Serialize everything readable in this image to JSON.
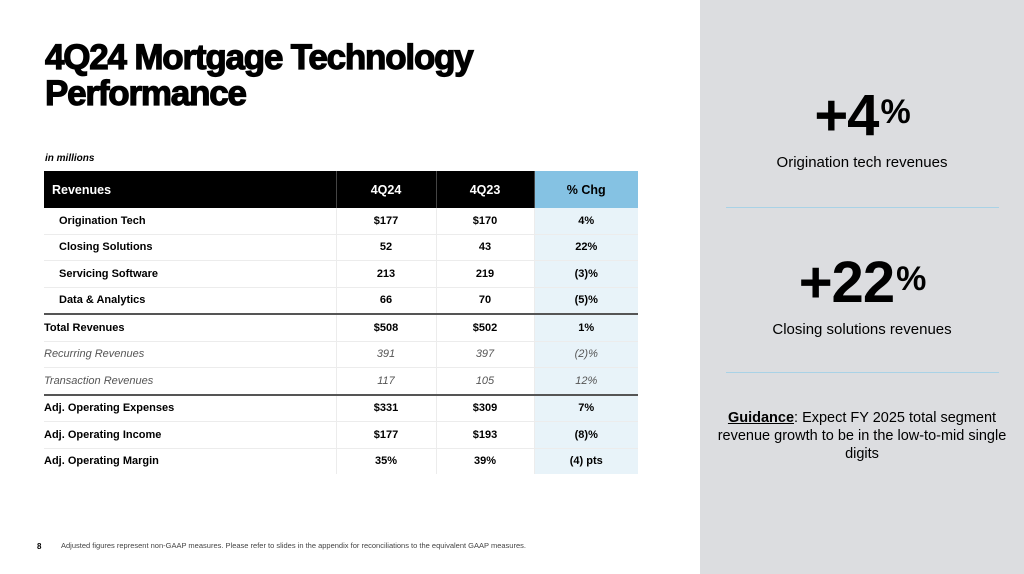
{
  "title": {
    "line1": "4Q24 Mortgage Technology",
    "line2": "Performance"
  },
  "units": "in millions",
  "table": {
    "headers": [
      "Revenues",
      "4Q24",
      "4Q23",
      "% Chg"
    ],
    "rows": [
      {
        "label": "Origination Tech",
        "q424": "$177",
        "q423": "$170",
        "chg": "4%"
      },
      {
        "label": "Closing Solutions",
        "q424": "52",
        "q423": "43",
        "chg": "22%"
      },
      {
        "label": "Servicing Software",
        "q424": "213",
        "q423": "219",
        "chg": "(3)%"
      },
      {
        "label": "Data & Analytics",
        "q424": "66",
        "q423": "70",
        "chg": "(5)%"
      },
      {
        "label": "Total Revenues",
        "q424": "$508",
        "q423": "$502",
        "chg": "1%"
      },
      {
        "label": "Recurring Revenues",
        "q424": "391",
        "q423": "397",
        "chg": "(2)%"
      },
      {
        "label": "Transaction Revenues",
        "q424": "117",
        "q423": "105",
        "chg": "12%"
      },
      {
        "label": "Adj. Operating Expenses",
        "q424": "$331",
        "q423": "$309",
        "chg": "7%"
      },
      {
        "label": "Adj. Operating Income",
        "q424": "$177",
        "q423": "$193",
        "chg": "(8)%"
      },
      {
        "label": "Adj. Operating Margin",
        "q424": "35%",
        "q423": "39%",
        "chg": "(4) pts"
      }
    ]
  },
  "highlights": [
    {
      "value": "+4",
      "unit": "%",
      "caption": "Origination tech revenues"
    },
    {
      "value": "+22",
      "unit": "%",
      "caption": "Closing solutions revenues"
    }
  ],
  "guidance": {
    "label": "Guidance",
    "text": ": Expect FY 2025 total segment revenue growth to be in the low-to-mid single digits"
  },
  "footer": {
    "page": "8",
    "note": "Adjusted figures represent non-GAAP measures. Please refer to slides in the appendix for reconciliations to the equivalent GAAP measures."
  },
  "colors": {
    "header_bg": "#000000",
    "chg_header": "#85c2e3",
    "chg_cell": "#e8f3f9",
    "panel": "#dcdde0",
    "divider": "#a9d2e6"
  }
}
